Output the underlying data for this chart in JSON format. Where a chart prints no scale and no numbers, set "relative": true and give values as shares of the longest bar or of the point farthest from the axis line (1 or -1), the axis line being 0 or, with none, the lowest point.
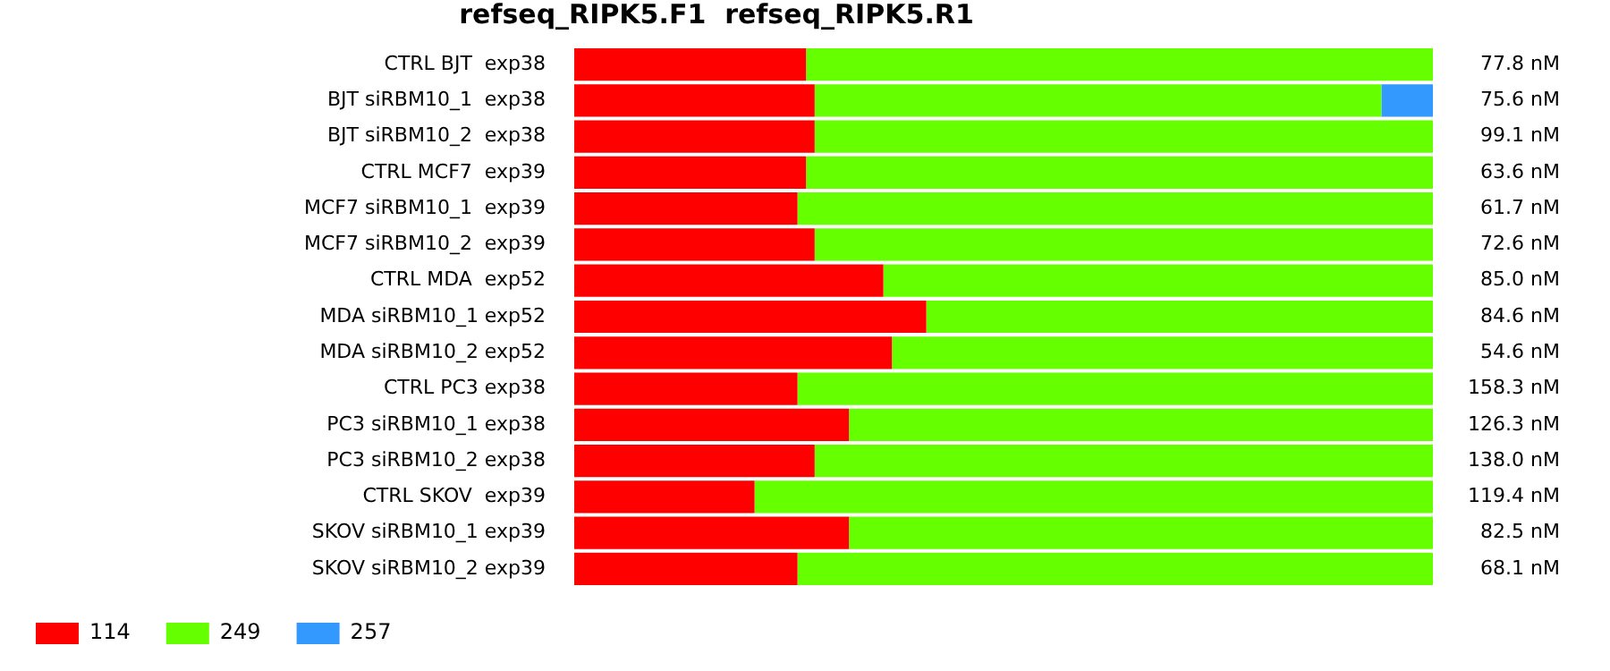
{
  "chart_data": {
    "type": "bar",
    "title": "refseq_RIPK5.F1  refseq_RIPK5.R1",
    "orientation": "horizontal",
    "stacked": true,
    "relative": true,
    "legend": "bottom left",
    "categories": [
      "CTRL BJT  exp38",
      "BJT siRBM10_1  exp38",
      "BJT siRBM10_2  exp38",
      "CTRL MCF7  exp39",
      "MCF7 siRBM10_1  exp39",
      "MCF7 siRBM10_2  exp39",
      "CTRL MDA  exp52",
      "MDA siRBM10_1 exp52",
      "MDA siRBM10_2 exp52",
      "CTRL PC3 exp38",
      "PC3 siRBM10_1 exp38",
      "PC3 siRBM10_2 exp38",
      "CTRL SKOV  exp39",
      "SKOV siRBM10_1 exp39",
      "SKOV siRBM10_2 exp39"
    ],
    "series": [
      {
        "name": "114",
        "color": "#ff0000",
        "values": [
          0.27,
          0.28,
          0.28,
          0.27,
          0.26,
          0.28,
          0.36,
          0.41,
          0.37,
          0.26,
          0.32,
          0.28,
          0.21,
          0.32,
          0.26
        ]
      },
      {
        "name": "249",
        "color": "#66ff00",
        "values": [
          0.73,
          0.66,
          0.72,
          0.73,
          0.74,
          0.72,
          0.64,
          0.59,
          0.63,
          0.74,
          0.68,
          0.72,
          0.79,
          0.68,
          0.74
        ]
      },
      {
        "name": "257",
        "color": "#3399ff",
        "values": [
          null,
          0.06,
          null,
          null,
          null,
          null,
          null,
          null,
          null,
          null,
          null,
          null,
          null,
          null,
          null
        ]
      }
    ],
    "annotations": [
      "77.8 nM",
      "75.6 nM",
      "99.1 nM",
      "63.6 nM",
      "61.7 nM",
      "72.6 nM",
      "85.0 nM",
      "84.6 nM",
      "54.6 nM",
      "158.3 nM",
      "126.3 nM",
      "138.0 nM",
      "119.4 nM",
      "82.5 nM",
      "68.1 nM"
    ]
  }
}
